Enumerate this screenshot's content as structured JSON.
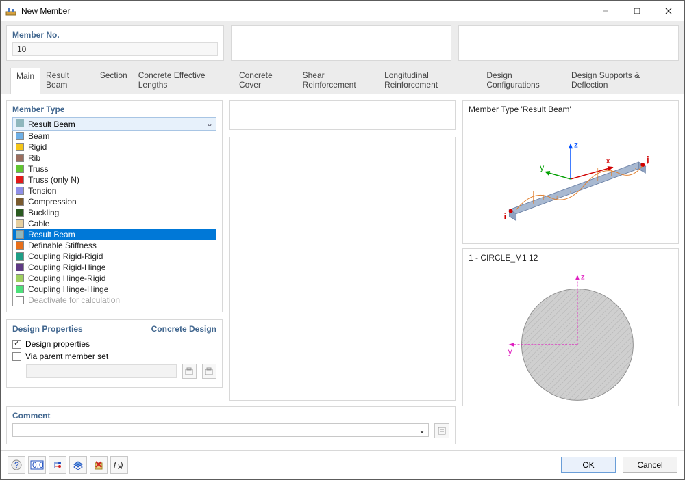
{
  "window": {
    "title": "New Member"
  },
  "header": {
    "member_no_label": "Member No.",
    "member_no_value": "10"
  },
  "tabs": [
    {
      "label": "Main",
      "active": true
    },
    {
      "label": "Result Beam"
    },
    {
      "label": "Section"
    },
    {
      "label": "Concrete Effective Lengths"
    },
    {
      "label": "Concrete Cover"
    },
    {
      "label": "Shear Reinforcement"
    },
    {
      "label": "Longitudinal Reinforcement"
    },
    {
      "label": "Design Configurations"
    },
    {
      "label": "Design Supports & Deflection"
    }
  ],
  "member_type": {
    "title": "Member Type",
    "selected": "Result Beam",
    "selected_color": "#8fb7bd",
    "items": [
      {
        "label": "Beam",
        "color": "#6fb0e6"
      },
      {
        "label": "Rigid",
        "color": "#f4c518"
      },
      {
        "label": "Rib",
        "color": "#9b6e5e"
      },
      {
        "label": "Truss",
        "color": "#62c531"
      },
      {
        "label": "Truss (only N)",
        "color": "#e21a1a"
      },
      {
        "label": "Tension",
        "color": "#8f8fe8"
      },
      {
        "label": "Compression",
        "color": "#7a5a2e"
      },
      {
        "label": "Buckling",
        "color": "#2a5a20"
      },
      {
        "label": "Cable",
        "color": "#e6cf9f"
      },
      {
        "label": "Result Beam",
        "color": "#8fb7bd",
        "selected": true
      },
      {
        "label": "Definable Stiffness",
        "color": "#e86f1a"
      },
      {
        "label": "Coupling Rigid-Rigid",
        "color": "#1f9e86"
      },
      {
        "label": "Coupling Rigid-Hinge",
        "color": "#5f3a84"
      },
      {
        "label": "Coupling Hinge-Rigid",
        "color": "#9fd060"
      },
      {
        "label": "Coupling Hinge-Hinge",
        "color": "#4de07a"
      },
      {
        "label": "Deactivate for calculation",
        "color": "#ffffff",
        "disabled": true
      }
    ]
  },
  "design_props": {
    "title": "Design Properties",
    "right_title": "Concrete Design",
    "chk1_label": "Design properties",
    "chk1_checked": true,
    "chk2_label": "Via parent member set",
    "chk2_checked": false
  },
  "comment": {
    "title": "Comment",
    "value": ""
  },
  "preview_top": {
    "title": "Member Type 'Result Beam'",
    "axes": {
      "z_label": "z",
      "y_label": "y",
      "i_label": "i",
      "j_label": "j",
      "x_label": "x"
    },
    "colors": {
      "beam_fill": "#a8b9d1",
      "beam_edge": "#6f84a8",
      "z_axis": "#0050ff",
      "y_axis": "#00a000",
      "x_axis": "#d00000",
      "node": "#d00000",
      "diagram": "#e08030"
    }
  },
  "preview_bottom": {
    "title": "1 - CIRCLE_M1 12",
    "circle": {
      "radius": 80,
      "fill": "#c8c8c8",
      "hatch": "#b0b0b0"
    },
    "axes": {
      "z_label": "z",
      "y_label": "y",
      "color": "#e020c0"
    }
  },
  "right_toolbar": {
    "icons": [
      "view-3d",
      "axes-box",
      "dim-100",
      "section-ed",
      "section-ed2",
      "i-red",
      "i-blue",
      "i-gray",
      "grid-dots",
      "grid-blue",
      "list",
      "print",
      "dropdown",
      "reset"
    ],
    "selected_index": 9
  },
  "footer": {
    "left_icons": [
      "help",
      "decimals",
      "tree",
      "layers",
      "delete-x",
      "fx"
    ],
    "ok": "OK",
    "cancel": "Cancel"
  },
  "colors": {
    "heading": "#42678f",
    "panel_border": "#d8d8d8",
    "selection_bg": "#0078d7",
    "combo_bg": "#e7f1fb",
    "combo_border": "#a8c5e4"
  }
}
